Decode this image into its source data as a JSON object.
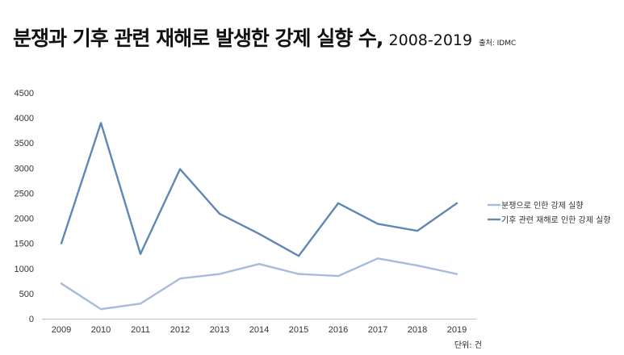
{
  "header": {
    "title": "분쟁과 기후 관련 재해로 발생한 강제 실향 수,",
    "years": "2008-2019",
    "source": "출처: IDMC"
  },
  "chart_data": {
    "type": "line",
    "x": [
      "2009",
      "2010",
      "2011",
      "2012",
      "2013",
      "2014",
      "2015",
      "2016",
      "2017",
      "2018",
      "2019"
    ],
    "series": [
      {
        "name": "분쟁으로 인한 강제 실향",
        "color": "#a5bcdc",
        "values": [
          700,
          190,
          300,
          800,
          890,
          1090,
          890,
          850,
          1200,
          1060,
          890
        ]
      },
      {
        "name": "기후 관련 재해로 인한 강제 실향",
        "color": "#5f87b5",
        "values": [
          1500,
          3900,
          1290,
          2980,
          2090,
          1690,
          1250,
          2300,
          1890,
          1750,
          2300
        ]
      }
    ],
    "ylim": [
      0,
      4500
    ],
    "yticks": [
      "0",
      "500",
      "1000",
      "1500",
      "2000",
      "2500",
      "3000",
      "3500",
      "4000",
      "4500"
    ],
    "grid": false,
    "legend": "right",
    "unit_label": "단위: 건"
  }
}
